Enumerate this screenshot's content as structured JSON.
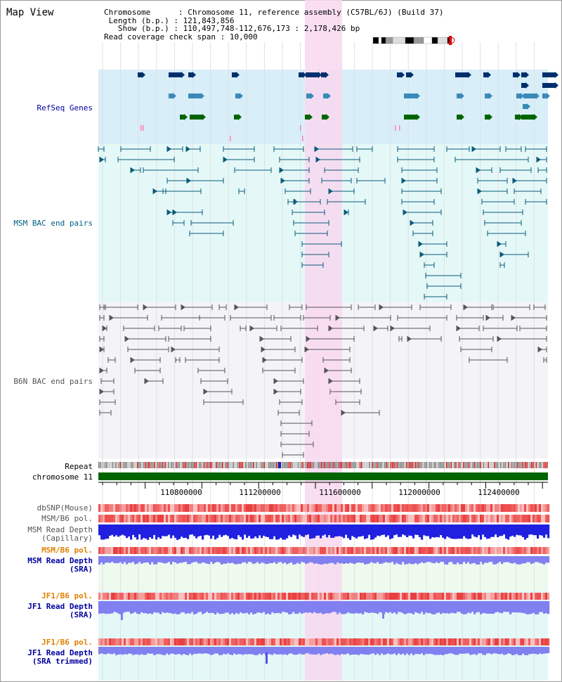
{
  "header": {
    "title": "Map View",
    "chromosome_key": "Chromosome",
    "chromosome_value": "Chromosome 11, reference assembly (C57BL/6J) (Build 37)",
    "length_key": "Length (b.p.)",
    "length_value": "121,843,856",
    "show_key": "Show (b.p.)",
    "show_value": "110,497,748-112,676,173 : 2,178,426 bp",
    "coverage_key": "Read coverage check span",
    "coverage_value": "10,000"
  },
  "tracks": {
    "refseq": "RefSeq Genes",
    "msm_bac": "MSM BAC end pairs",
    "b6n_bac": "B6N BAC end pairs",
    "repeat": "Repeat",
    "chromosome": "chromosome 11",
    "dbsnp": "dbSNP(Mouse)",
    "msm_b6_pol_1": "MSM/B6 pol.",
    "msm_read_depth_cap_1": "MSM Read Depth",
    "msm_read_depth_cap_2": "(Capillary)",
    "msm_b6_pol_2": "MSM/B6 pol.",
    "msm_read_depth_sra_1": "MSM Read Depth",
    "msm_read_depth_sra_2": "(SRA)",
    "jf1_b6_pol_1": "JF1/B6 pol.",
    "jf1_read_depth_sra_1": "JF1 Read Depth",
    "jf1_read_depth_sra_2": "(SRA)",
    "jf1_b6_pol_2": "JF1/B6 pol.",
    "jf1_read_depth_trim_1": "JF1 Read Depth",
    "jf1_read_depth_trim_2": "(SRA trimmed)"
  },
  "axis": {
    "ticks": [
      "110800000",
      "111200000",
      "111600000",
      "112000000",
      "112400000"
    ]
  },
  "colors": {
    "highlight": "#f8d8f0",
    "refseq_bg": "#d8eef8",
    "msm_bg": "#e4f8f8",
    "b6n_bg": "#f4f4f8",
    "gene_navy": "#002f6c",
    "gene_mid": "#3a8ab8",
    "gene_green": "#006400",
    "msm_pair": "#0a5a7a",
    "b6n_pair": "#555555",
    "chrom_bar": "#006400",
    "snp_red": "#e84040",
    "depth_blue": "#2020e0",
    "depth_light": "#8080f0"
  }
}
